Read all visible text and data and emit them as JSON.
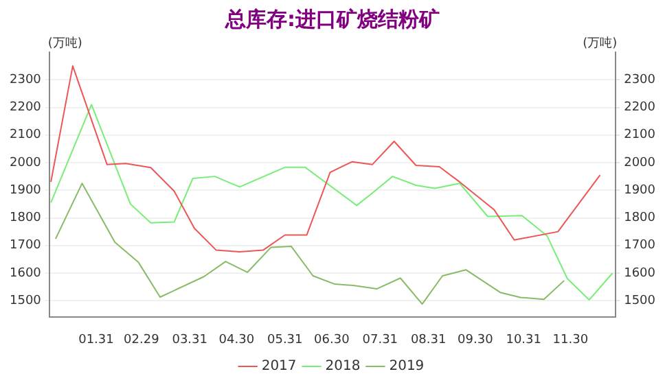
{
  "chart_data": {
    "type": "line",
    "title": "总库存:进口矿烧结粉矿",
    "ylabel": "(万吨)",
    "y2label": "(万吨)",
    "xlim": [
      "--01-01",
      "--12-29"
    ],
    "xticks": [
      {
        "value": "--01-31",
        "label": "01.31"
      },
      {
        "value": "--02-29",
        "label": "02.29"
      },
      {
        "value": "--03-31",
        "label": "03.31"
      },
      {
        "value": "--04-30",
        "label": "04.30"
      },
      {
        "value": "--05-31",
        "label": "05.31"
      },
      {
        "value": "--06-30",
        "label": "06.30"
      },
      {
        "value": "--07-31",
        "label": "07.31"
      },
      {
        "value": "--08-31",
        "label": "08.31"
      },
      {
        "value": "--09-30",
        "label": "09.30"
      },
      {
        "value": "--10-31",
        "label": "10.31"
      },
      {
        "value": "--11-30",
        "label": "11.30"
      }
    ],
    "ylim": [
      1440,
      2400
    ],
    "yticks": [
      1500,
      1600,
      1700,
      1800,
      1900,
      2000,
      2100,
      2200,
      2300
    ],
    "y2lim": [
      1440,
      2400
    ],
    "y2ticks": [
      1500,
      1600,
      1700,
      1800,
      1900,
      2000,
      2100,
      2200,
      2300
    ],
    "grid": "y",
    "legend": "bottom",
    "marker": "none",
    "line_style": "solid",
    "series": [
      {
        "name": "2017",
        "color": "#ee5555",
        "x": [
          "--01-02",
          "--01-16",
          "--02-07",
          "--02-19",
          "--03-06",
          "--03-21",
          "--04-03",
          "--04-17",
          "--05-02",
          "--05-17",
          "--05-31",
          "--06-14",
          "--06-29",
          "--07-13",
          "--07-26",
          "--08-09",
          "--08-23",
          "--09-07",
          "--09-20",
          "--10-12",
          "--10-25",
          "--11-22",
          "--12-19"
        ],
        "values": [
          1930,
          2350,
          1993,
          1997,
          1982,
          1897,
          1762,
          1683,
          1677,
          1683,
          1738,
          1738,
          1965,
          2003,
          1993,
          2077,
          1990,
          1985,
          1930,
          1830,
          1720,
          1750,
          1955
        ]
      },
      {
        "name": "2018",
        "color": "#77ee77",
        "x": [
          "--01-02",
          "--01-28",
          "--02-22",
          "--03-06",
          "--03-21",
          "--04-02",
          "--04-16",
          "--05-02",
          "--05-31",
          "--06-13",
          "--07-16",
          "--07-25",
          "--08-08",
          "--08-23",
          "--09-04",
          "--09-20",
          "--10-08",
          "--10-30",
          "--11-15",
          "--11-28",
          "--12-12",
          "--12-27"
        ],
        "values": [
          1855,
          2210,
          1850,
          1782,
          1785,
          1943,
          1950,
          1912,
          1983,
          1983,
          1845,
          1885,
          1950,
          1918,
          1907,
          1925,
          1805,
          1808,
          1735,
          1580,
          1503,
          1600
        ]
      },
      {
        "name": "2019",
        "color": "#88bb66",
        "x": [
          "--01-05",
          "--01-22",
          "--02-12",
          "--02-27",
          "--03-12",
          "--04-09",
          "--04-23",
          "--05-07",
          "--05-22",
          "--06-04",
          "--06-18",
          "--07-02",
          "--07-14",
          "--07-29",
          "--08-13",
          "--08-27",
          "--09-09",
          "--09-24",
          "--10-16",
          "--10-29",
          "--11-13",
          "--11-26"
        ],
        "values": [
          1724,
          1925,
          1712,
          1640,
          1513,
          1587,
          1642,
          1603,
          1693,
          1697,
          1590,
          1560,
          1555,
          1543,
          1582,
          1488,
          1590,
          1612,
          1530,
          1512,
          1505,
          1573
        ]
      }
    ]
  }
}
